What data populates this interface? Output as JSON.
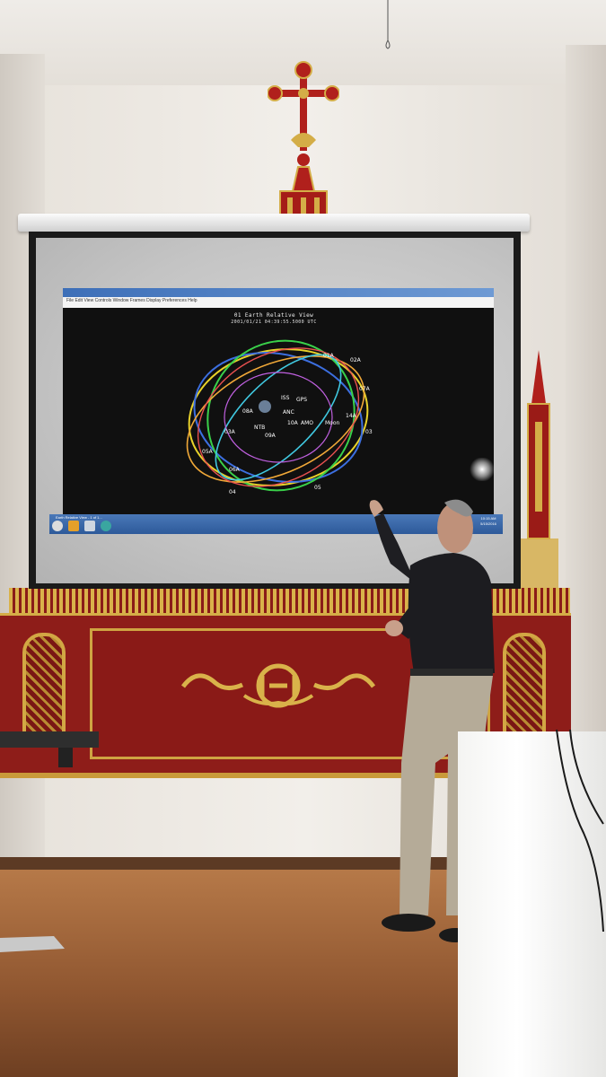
{
  "scene": {
    "description_colors": {
      "screen_bezel": "#1a1a1a",
      "altar_red": "#8e1d19",
      "altar_gold": "#d4ad47",
      "wood_floor": "#8f5630"
    }
  },
  "projection": {
    "window_menu": "File  Edit  View  Controls  Window  Frames  Display  Preferences  Help",
    "view_title": "01 Earth Relative View",
    "timestamp": "2001/01/21 04:39:55.5000 UTC",
    "taskbar_item": "Earth Relative View - 1 of 1...",
    "clock_time": "10:15 AM",
    "clock_date": "5/15/2016"
  },
  "orbit_labels": [
    "01A",
    "02A",
    "07A",
    "ISS",
    "GPS",
    "08A",
    "03A",
    "05A",
    "06A",
    "09A",
    "10A",
    "14A",
    "Moon",
    "NTB",
    "ANC",
    "AMO",
    "05",
    "04",
    "03"
  ],
  "icons": {
    "cross": "ornate-cross-icon",
    "monogram": "ihs-monogram-icon"
  }
}
